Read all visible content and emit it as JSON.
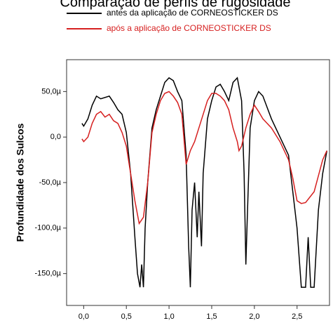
{
  "chart_data": {
    "type": "line",
    "title": "Comparação de perfis de rugosidade",
    "y_label": "Profundidade dos Sulcos",
    "xlim": [
      -0.2,
      2.88
    ],
    "ylim": [
      -185,
      85
    ],
    "xticks": [
      {
        "value": 0,
        "label": "0,0"
      },
      {
        "value": 0.5,
        "label": "0,5"
      },
      {
        "value": 1,
        "label": "1,0"
      },
      {
        "value": 1.5,
        "label": "1,5"
      },
      {
        "value": 2,
        "label": "2,0"
      },
      {
        "value": 2.5,
        "label": "2,5"
      }
    ],
    "yticks": [
      {
        "value": 50,
        "label": "50,0µ"
      },
      {
        "value": 0,
        "label": "0,0"
      },
      {
        "value": -50,
        "label": "-50,0µ"
      },
      {
        "value": -100,
        "label": "-100,0µ"
      },
      {
        "value": -150,
        "label": "-150,0µ"
      }
    ],
    "series": [
      {
        "name": "antes da aplicação de CORNEOSTICKER DS",
        "color": "#000000",
        "x": [
          -0.02,
          0,
          0.05,
          0.1,
          0.15,
          0.2,
          0.3,
          0.35,
          0.4,
          0.45,
          0.5,
          0.55,
          0.6,
          0.63,
          0.66,
          0.68,
          0.7,
          0.72,
          0.75,
          0.8,
          0.85,
          0.9,
          0.95,
          1,
          1.05,
          1.1,
          1.15,
          1.2,
          1.23,
          1.25,
          1.27,
          1.3,
          1.33,
          1.35,
          1.38,
          1.4,
          1.45,
          1.5,
          1.55,
          1.6,
          1.65,
          1.7,
          1.75,
          1.8,
          1.85,
          1.88,
          1.9,
          1.92,
          1.95,
          2,
          2.05,
          2.1,
          2.2,
          2.3,
          2.4,
          2.5,
          2.55,
          2.6,
          2.63,
          2.66,
          2.7,
          2.75,
          2.8,
          2.85
        ],
        "values": [
          15,
          12,
          20,
          35,
          45,
          42,
          45,
          38,
          30,
          25,
          5,
          -40,
          -110,
          -150,
          -165,
          -140,
          -165,
          -100,
          -50,
          10,
          30,
          45,
          60,
          65,
          62,
          50,
          40,
          -20,
          -120,
          -165,
          -80,
          -50,
          -110,
          -60,
          -120,
          -40,
          20,
          40,
          55,
          58,
          50,
          40,
          60,
          65,
          40,
          -40,
          -140,
          -80,
          10,
          40,
          50,
          45,
          20,
          0,
          -20,
          -100,
          -165,
          -165,
          -110,
          -165,
          -165,
          -80,
          -40,
          -15
        ]
      },
      {
        "name": "após a aplicação de CORNEOSTICKER DS",
        "color": "#d62020",
        "x": [
          -0.02,
          0,
          0.05,
          0.1,
          0.15,
          0.2,
          0.25,
          0.3,
          0.35,
          0.4,
          0.45,
          0.5,
          0.55,
          0.6,
          0.65,
          0.7,
          0.75,
          0.8,
          0.85,
          0.9,
          0.95,
          1,
          1.05,
          1.1,
          1.15,
          1.2,
          1.25,
          1.3,
          1.35,
          1.4,
          1.45,
          1.5,
          1.55,
          1.6,
          1.65,
          1.7,
          1.75,
          1.8,
          1.82,
          1.85,
          1.9,
          1.95,
          2,
          2.05,
          2.1,
          2.2,
          2.3,
          2.4,
          2.45,
          2.5,
          2.55,
          2.6,
          2.7,
          2.8,
          2.85
        ],
        "values": [
          -2,
          -5,
          0,
          15,
          25,
          28,
          22,
          25,
          18,
          15,
          5,
          -10,
          -40,
          -70,
          -95,
          -88,
          -50,
          5,
          25,
          40,
          48,
          50,
          45,
          38,
          25,
          -30,
          -15,
          -5,
          10,
          25,
          40,
          48,
          48,
          45,
          40,
          30,
          10,
          -5,
          -15,
          -10,
          10,
          25,
          35,
          28,
          20,
          10,
          -5,
          -25,
          -45,
          -70,
          -73,
          -72,
          -60,
          -25,
          -15
        ]
      }
    ]
  }
}
